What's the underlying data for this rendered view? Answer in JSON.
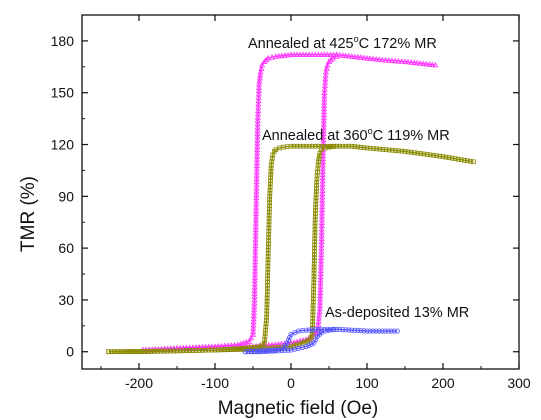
{
  "chart_data": {
    "type": "line",
    "xlabel": "Magnetic field (Oe)",
    "ylabel": "TMR (%)",
    "xlim": [
      -275,
      300
    ],
    "ylim": [
      -10,
      195
    ],
    "xticks": [
      -200,
      -100,
      0,
      100,
      200,
      300
    ],
    "xtick_labels": [
      "-200",
      "-100",
      "0",
      "100",
      "200",
      "300"
    ],
    "yticks": [
      0,
      30,
      60,
      90,
      120,
      150,
      180
    ],
    "ytick_labels": [
      "0",
      "30",
      "60",
      "90",
      "120",
      "150",
      "180"
    ],
    "grid": false,
    "series": [
      {
        "name": "Annealed at 425°C 172% MR",
        "label_parts": [
          "Annealed at 425",
          "o",
          "C 172% MR"
        ],
        "color": "#ff33ff",
        "marker": "triangle",
        "branches": [
          {
            "x": [
              -195,
              -150,
              -100,
              -70,
              -55,
              -50,
              -48,
              -46,
              -44,
              -42,
              -40,
              -38,
              -35,
              -30,
              -20,
              0,
              20,
              40,
              60,
              80,
              100,
              120,
              150,
              170,
              190
            ],
            "y": [
              1,
              2,
              3,
              4,
              6,
              10,
              30,
              80,
              130,
              155,
              162,
              166,
              168,
              170,
              171,
              172,
              172,
              172,
              172,
              171,
              170,
              169,
              168,
              167,
              166
            ]
          },
          {
            "x": [
              -195,
              -150,
              -100,
              -50,
              0,
              20,
              30,
              35,
              38,
              40,
              42,
              44,
              46,
              48,
              50,
              55,
              60
            ],
            "y": [
              1,
              1.5,
              2,
              3,
              5,
              7,
              9,
              12,
              25,
              60,
              110,
              150,
              162,
              166,
              168,
              170,
              171
            ]
          }
        ]
      },
      {
        "name": "Annealed at 360°C 119% MR",
        "label_parts": [
          "Annealed at 360",
          "o",
          "C  119% MR"
        ],
        "color": "#8a8a00",
        "marker": "square",
        "branches": [
          {
            "x": [
              -240,
              -200,
              -150,
              -100,
              -60,
              -40,
              -35,
              -32,
              -30,
              -28,
              -26,
              -24,
              -22,
              -20,
              -15,
              -10,
              0,
              20,
              40,
              60,
              80,
              100,
              150,
              200,
              240
            ],
            "y": [
              0,
              0,
              0.5,
              1,
              2,
              3,
              5,
              20,
              57,
              90,
              108,
              114,
              116,
              117,
              118,
              118.5,
              119,
              119,
              119,
              119,
              119,
              118,
              116,
              113,
              110
            ]
          },
          {
            "x": [
              -240,
              -150,
              -50,
              0,
              15,
              25,
              28,
              30,
              32,
              34,
              36,
              38,
              40,
              45,
              50,
              60
            ],
            "y": [
              0,
              0.5,
              1.5,
              3,
              5,
              7,
              10,
              40,
              80,
              100,
              110,
              115,
              117,
              118,
              118.5,
              119
            ]
          }
        ]
      },
      {
        "name": "As-deposited 13% MR",
        "label_parts": [
          "As-deposited 13% MR"
        ],
        "color": "#5555ff",
        "marker": "circle",
        "branches": [
          {
            "x": [
              -60,
              -40,
              -20,
              -10,
              -5,
              0,
              5,
              10,
              20,
              40,
              60,
              80,
              100,
              120,
              140
            ],
            "y": [
              0,
              0.5,
              1,
              2,
              5,
              10,
              11,
              12,
              12.5,
              13,
              13,
              12.5,
              12,
              12,
              12
            ]
          },
          {
            "x": [
              -60,
              -40,
              -20,
              0,
              10,
              20,
              30,
              35,
              40,
              45,
              50,
              60
            ],
            "y": [
              0,
              0,
              0.5,
              1,
              2,
              3,
              5,
              9,
              11,
              12,
              12.5,
              13
            ]
          }
        ]
      }
    ]
  }
}
